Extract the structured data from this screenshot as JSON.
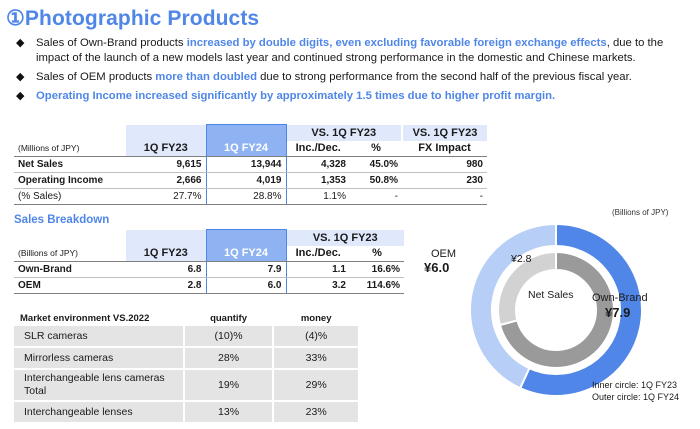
{
  "title": "①Photographic Products",
  "bullets": [
    {
      "pre": "Sales of Own-Brand products ",
      "hl": "increased by double digits, even excluding favorable foreign exchange effects",
      "post": ", due to the impact of the launch of a new models last year and continued strong performance in the domestic and Chinese markets."
    },
    {
      "pre": "Sales of OEM products ",
      "hl": "more than doubled",
      "post": " due to strong performance from the second half of the previous fiscal year."
    },
    {
      "all": "Operating Income increased significantly by approximately 1.5 times due to higher profit margin."
    }
  ],
  "table1": {
    "unit": "(Millions of JPY)",
    "headers": {
      "c1": "1Q FY23",
      "c2": "1Q FY24",
      "vs": "VS. 1Q FY23",
      "vs2": "VS. 1Q FY23",
      "incdec": "Inc./Dec.",
      "pct": "%",
      "fx": "FX Impact"
    },
    "rows": [
      {
        "label": "Net Sales",
        "fy23": "9,615",
        "fy24": "13,944",
        "inc": "4,328",
        "pct": "45.0%",
        "fx": "980"
      },
      {
        "label": "Operating Income",
        "fy23": "2,666",
        "fy24": "4,019",
        "inc": "1,353",
        "pct": "50.8%",
        "fx": "230"
      },
      {
        "label": "(% Sales)",
        "fy23": "27.7%",
        "fy24": "28.8%",
        "inc": "1.1%",
        "pct": "-",
        "fx": "-"
      }
    ]
  },
  "sales_breakdown_label": "Sales Breakdown",
  "table2": {
    "unit": "(Billions of JPY)",
    "headers": {
      "c1": "1Q FY23",
      "c2": "1Q FY24",
      "vs": "VS. 1Q FY23",
      "incdec": "Inc./Dec.",
      "pct": "%"
    },
    "rows": [
      {
        "label": "Own-Brand",
        "fy23": "6.8",
        "fy24": "7.9",
        "inc": "1.1",
        "pct": "16.6%"
      },
      {
        "label": "OEM",
        "fy23": "2.8",
        "fy24": "6.0",
        "inc": "3.2",
        "pct": "114.6%"
      }
    ]
  },
  "table3": {
    "headers": {
      "label": "Market environment VS.2022",
      "quantify": "quantify",
      "money": "money"
    },
    "rows": [
      {
        "label": "SLR cameras",
        "quantify": "(10)%",
        "money": "(4)%"
      },
      {
        "label": "Mirrorless cameras",
        "quantify": "28%",
        "money": "33%"
      },
      {
        "label": "Interchangeable lens cameras Total",
        "quantify": "19%",
        "money": "29%"
      },
      {
        "label": "Interchangeable lenses",
        "quantify": "13%",
        "money": "23%"
      }
    ]
  },
  "chart_data": {
    "type": "pie",
    "unit": "(Billions of JPY)",
    "center_label": "Net Sales",
    "colors": {
      "own_outer": "#4f86e8",
      "oem_outer": "#b7cef6",
      "own_inner": "#9a9a9a",
      "oem_inner": "#d2d2d2"
    },
    "inner": {
      "name": "Inner circle: 1Q FY23",
      "slices": [
        {
          "label": "Own-Brand",
          "value": 6.8,
          "text": "¥6.8"
        },
        {
          "label": "OEM",
          "value": 2.8,
          "text": "¥2.8"
        }
      ]
    },
    "outer": {
      "name": "Outer circle: 1Q FY24",
      "slices": [
        {
          "label": "Own-Brand",
          "value": 7.9,
          "text": "¥7.9"
        },
        {
          "label": "OEM",
          "value": 6.0,
          "text": "¥6.0"
        }
      ]
    }
  }
}
